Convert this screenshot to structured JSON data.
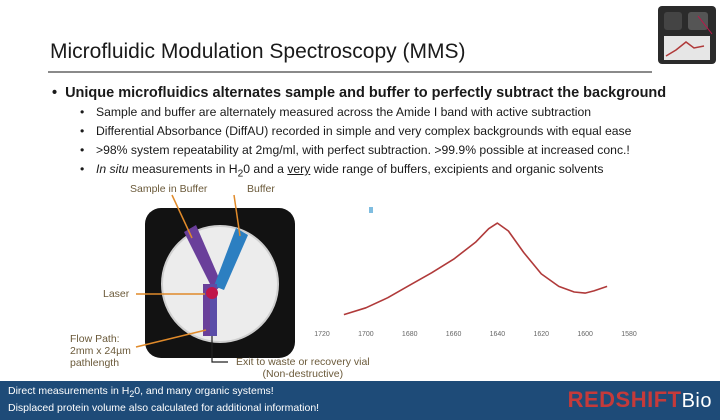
{
  "slide": {
    "title": "Microfluidic Modulation Spectroscopy (MMS)",
    "main_bullet": "Unique microfluidics alternates sample and buffer to perfectly subtract the background",
    "sub_bullets": [
      "Sample and buffer are alternately measured across the Amide I band with active subtraction",
      "Differential Absorbance (DiffAU) recorded in simple and very complex backgrounds with equal ease",
      ">98% system repeatability at 2mg/ml, with perfect subtraction. >99.9% possible at increased conc.!"
    ],
    "bullet4": {
      "italic": "In situ",
      "part1": " measurements in H",
      "sub": "2",
      "part2": "0 and a ",
      "underlined": "very",
      "part3": " wide range of buffers, excipients and organic solvents"
    }
  },
  "diagram": {
    "label_sample": "Sample in Buffer",
    "label_buffer": "Buffer",
    "label_laser": "Laser",
    "label_flow_1": "Flow Path:",
    "label_flow_2": "2mm x 24µm",
    "label_flow_3": "pathlength",
    "label_exit_1": "Exit to waste or recovery vial",
    "label_exit_2": "(Non-destructive)",
    "colors": {
      "sample": "#6a3f9a",
      "buffer": "#2c7fc1",
      "laser": "#c0154a",
      "leader": "#e08a2a"
    }
  },
  "chart_data": {
    "type": "line",
    "x_ticks": [
      "1720",
      "1700",
      "1680",
      "1660",
      "1640",
      "1620",
      "1600",
      "1580"
    ],
    "xlim": [
      1720,
      1580
    ],
    "x_reversed": true,
    "grid": false,
    "series": [
      {
        "color": "#b03a3a",
        "points": [
          [
            1710,
            0.03
          ],
          [
            1700,
            0.09
          ],
          [
            1690,
            0.18
          ],
          [
            1680,
            0.29
          ],
          [
            1670,
            0.4
          ],
          [
            1660,
            0.52
          ],
          [
            1650,
            0.67
          ],
          [
            1644,
            0.79
          ],
          [
            1640,
            0.84
          ],
          [
            1635,
            0.77
          ],
          [
            1628,
            0.58
          ],
          [
            1620,
            0.39
          ],
          [
            1612,
            0.28
          ],
          [
            1605,
            0.23
          ],
          [
            1600,
            0.22
          ],
          [
            1596,
            0.24
          ],
          [
            1590,
            0.28
          ]
        ]
      }
    ]
  },
  "footer": {
    "line1_pre": "Direct measurements in H",
    "line1_sub": "2",
    "line1_post": "0, and many organic systems!",
    "line2": "Displaced protein volume also calculated for additional information!",
    "logo_main": "REDSHIFT",
    "logo_suffix": "Bio"
  }
}
